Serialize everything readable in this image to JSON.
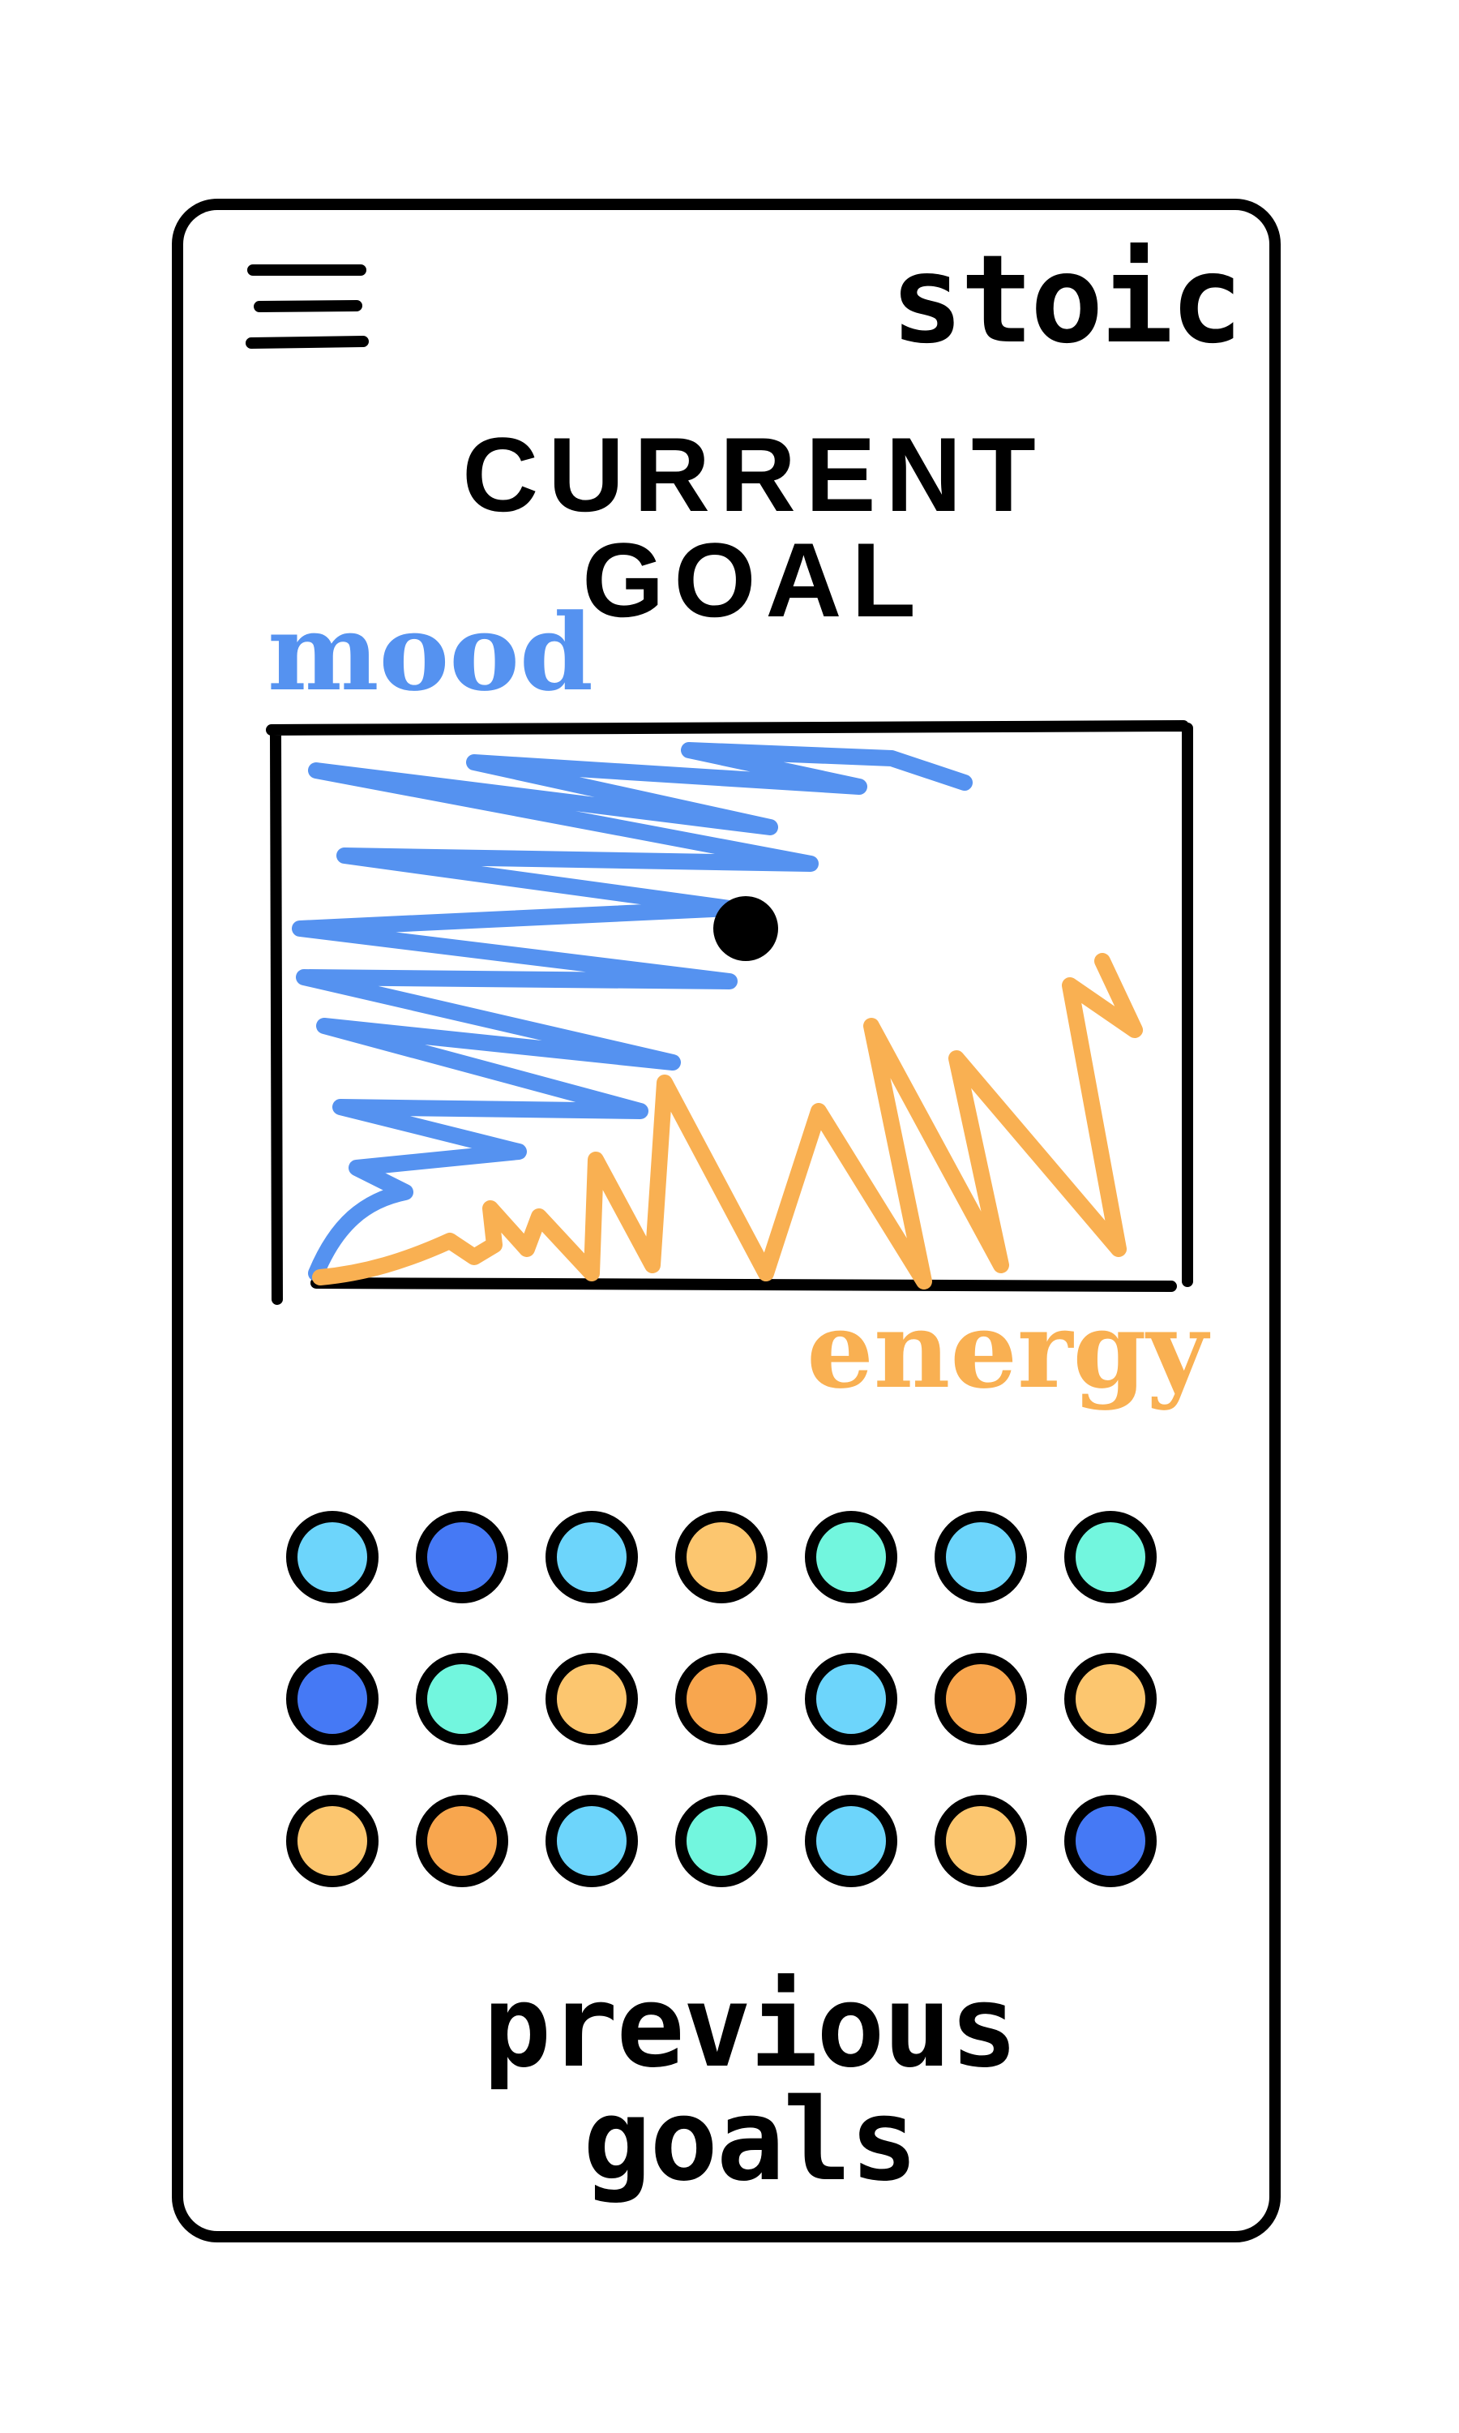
{
  "header": {
    "menu_icon": "hamburger-menu-icon",
    "brand": "stoic"
  },
  "main": {
    "title": "CURRENT GOAL",
    "chart": {
      "mood_label": "mood",
      "energy_label": "energy",
      "mood_color": "#5592f0",
      "energy_color": "#f9b052",
      "marker_color": "#000000"
    },
    "goal_dots": [
      {
        "color": "#6dd5fb"
      },
      {
        "color": "#4579f5"
      },
      {
        "color": "#6dd5fb"
      },
      {
        "color": "#fcc66f"
      },
      {
        "color": "#72f6de"
      },
      {
        "color": "#6dd5fb"
      },
      {
        "color": "#72f6de"
      },
      {
        "color": "#4579f5"
      },
      {
        "color": "#72f6de"
      },
      {
        "color": "#fcc66f"
      },
      {
        "color": "#f8a64e"
      },
      {
        "color": "#6dd5fb"
      },
      {
        "color": "#f8a64e"
      },
      {
        "color": "#fcc66f"
      },
      {
        "color": "#fcc66f"
      },
      {
        "color": "#f8a64e"
      },
      {
        "color": "#6dd5fb"
      },
      {
        "color": "#72f6de"
      },
      {
        "color": "#6dd5fb"
      },
      {
        "color": "#fcc66f"
      },
      {
        "color": "#4579f5"
      }
    ],
    "previous_goals_label": "previous goals"
  }
}
